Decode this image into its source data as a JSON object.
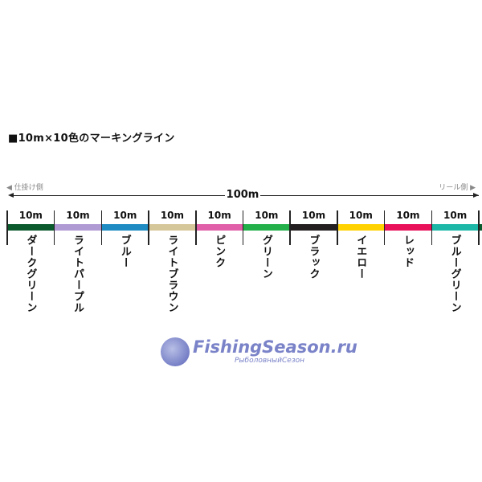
{
  "title": "■10m×10色のマーキングライン",
  "left_side_label": "◀ 仕掛け側",
  "right_side_label": "リール側 ▶",
  "total_length": "100m",
  "segment_length_label": "10m",
  "segments": [
    {
      "name": "ダークグリーン",
      "color": "#0b5a2e"
    },
    {
      "name": "ライトパープル",
      "color": "#b09ad4"
    },
    {
      "name": "ブルー",
      "color": "#1e8bc3"
    },
    {
      "name": "ライトブラウン",
      "color": "#d6c79b"
    },
    {
      "name": "ピンク",
      "color": "#e05fa8"
    },
    {
      "name": "グリーン",
      "color": "#23b04b"
    },
    {
      "name": "ブラック",
      "color": "#231f20"
    },
    {
      "name": "イエロー",
      "color": "#ffd200"
    },
    {
      "name": "レッド",
      "color": "#e8115a"
    },
    {
      "name": "ブルーグリーン",
      "color": "#1db7a7"
    }
  ],
  "watermark": {
    "main": "FishingSeason.ru",
    "sub": "РыболовныйСезон"
  }
}
